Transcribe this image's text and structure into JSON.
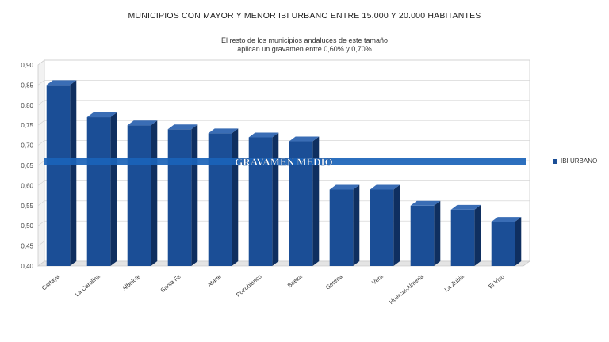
{
  "chart_data": {
    "type": "bar",
    "title": "MUNICIPIOS CON MAYOR Y MENOR IBI URBANO ENTRE 15.000 Y 20.000 HABITANTES",
    "subtitle": [
      "El resto de los municipios andaluces de este tamaño",
      "aplican un gravamen entre 0,60% y 0,70%"
    ],
    "categories": [
      "Cartaya",
      "La Carolina",
      "Albolote",
      "Santa Fe",
      "Atarfe",
      "Pozoblanco",
      "Baeza",
      "Gerena",
      "Vera",
      "Huercal-Almeria",
      "La Zubia",
      "El Viso"
    ],
    "series": [
      {
        "name": "IBI URBANO",
        "values": [
          0.85,
          0.77,
          0.75,
          0.74,
          0.73,
          0.72,
          0.71,
          0.59,
          0.59,
          0.55,
          0.54,
          0.51
        ]
      }
    ],
    "ylim": [
      0.4,
      0.9
    ],
    "yticks": [
      "0,40",
      "0,45",
      "0,50",
      "0,55",
      "0,60",
      "0,65",
      "0,70",
      "0,75",
      "0,80",
      "0,85",
      "0,90"
    ],
    "reference_line": {
      "label": "GRAVAMEN MEDIO",
      "value": 0.66
    },
    "legend": {
      "label": "IBI URBANO",
      "position": "right"
    },
    "grid": true,
    "colors": {
      "bar": "#1b4e96",
      "bar_top": "#3a6db5",
      "bar_side": "#0f2f60",
      "band": "#1a63b8"
    }
  }
}
